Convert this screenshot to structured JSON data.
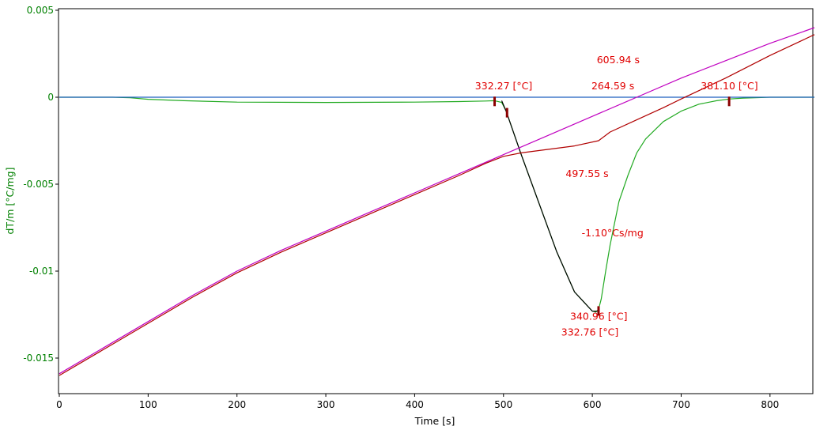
{
  "colors": {
    "axis_y": "#008000",
    "axis_x": "#000000",
    "annotation": "#e00000",
    "series_green": "#22aa22",
    "series_magenta": "#c000c0",
    "series_red": "#b00000",
    "series_blue": "#1f5fbf",
    "series_black": "#000000",
    "marker": "#8b0000"
  },
  "chart_data": {
    "type": "line",
    "xlabel": "Time [s]",
    "ylabel": "dT/m  [°C/mg]",
    "xlim": [
      0,
      850
    ],
    "ylim": [
      -0.017,
      0.005
    ],
    "xticks": [
      0,
      100,
      200,
      300,
      400,
      500,
      600,
      700,
      800
    ],
    "yticks": [
      0.005,
      0,
      -0.005,
      -0.01,
      -0.015
    ],
    "ytick_labels": [
      "0.005",
      "0",
      "-0.005",
      "-0.01",
      "-0.015"
    ],
    "xtick_labels": [
      "0",
      "100",
      "200",
      "300",
      "400",
      "500",
      "600",
      "700",
      "800"
    ],
    "series": [
      {
        "color": "#22aa22",
        "x": [
          0,
          60,
          80,
          100,
          140,
          200,
          300,
          400,
          450,
          480,
          490,
          498,
          503,
          520,
          540,
          560,
          580,
          600,
          604,
          607,
          610,
          615,
          620,
          630,
          640,
          650,
          660,
          680,
          700,
          720,
          740,
          755,
          770,
          800,
          850
        ],
        "y": [
          0,
          0,
          -3e-05,
          -0.00012,
          -0.0002,
          -0.00028,
          -0.0003,
          -0.00028,
          -0.00025,
          -0.00022,
          -0.0002,
          -0.0003,
          -0.0008,
          -0.0033,
          -0.0061,
          -0.0089,
          -0.0112,
          -0.0123,
          -0.01235,
          -0.0122,
          -0.0116,
          -0.01,
          -0.0085,
          -0.006,
          -0.0045,
          -0.0032,
          -0.0024,
          -0.0014,
          -0.0008,
          -0.0004,
          -0.0002,
          -0.0001,
          -5e-05,
          0,
          0
        ]
      },
      {
        "color": "#000000",
        "x": [
          498,
          503,
          520,
          540,
          560,
          580,
          600,
          607
        ],
        "y": [
          -0.0002,
          -0.0008,
          -0.0033,
          -0.0061,
          -0.0089,
          -0.0112,
          -0.0123,
          -0.0123
        ]
      },
      {
        "color": "#1f5fbf",
        "x": [
          0,
          850
        ],
        "y": [
          0,
          0
        ]
      },
      {
        "color": "#c000c0",
        "x": [
          0,
          50,
          100,
          150,
          200,
          250,
          300,
          350,
          400,
          450,
          500,
          550,
          600,
          650,
          700,
          750,
          800,
          850
        ],
        "y": [
          -0.0159,
          -0.0144,
          -0.0129,
          -0.0114,
          -0.01,
          -0.0088,
          -0.0077,
          -0.0066,
          -0.0055,
          -0.0044,
          -0.0033,
          -0.0022,
          -0.0011,
          0.0,
          0.0011,
          0.0021,
          0.0031,
          0.004
        ]
      },
      {
        "color": "#b00000",
        "x": [
          0,
          50,
          100,
          150,
          200,
          250,
          300,
          350,
          400,
          450,
          480,
          500,
          520,
          550,
          580,
          607,
          620,
          650,
          680,
          700,
          750,
          800,
          850
        ],
        "y": [
          -0.016,
          -0.0145,
          -0.013,
          -0.0115,
          -0.0101,
          -0.0089,
          -0.0078,
          -0.0067,
          -0.0056,
          -0.0045,
          -0.0038,
          -0.0034,
          -0.0032,
          -0.003,
          -0.0028,
          -0.0025,
          -0.002,
          -0.0013,
          -0.0006,
          -0.0001,
          0.0011,
          0.0024,
          0.0036
        ]
      }
    ],
    "markers": [
      {
        "x": 490,
        "y": -0.00015
      },
      {
        "x": 504,
        "y": -0.0008
      },
      {
        "x": 607,
        "y": -0.0122
      },
      {
        "x": 754,
        "y": -0.00015
      }
    ],
    "annotations": [
      {
        "text": "605.94 s",
        "x": 605,
        "y": 0.00195
      },
      {
        "text": "332.27 [°C]",
        "x": 468,
        "y": 0.00045
      },
      {
        "text": "264.59 s",
        "x": 599,
        "y": 0.00045
      },
      {
        "text": "381.10 [°C]",
        "x": 722,
        "y": 0.00045
      },
      {
        "text": "497.55 s",
        "x": 570,
        "y": -0.0046
      },
      {
        "text": "-1.10°Cs/mg",
        "x": 588,
        "y": -0.008
      },
      {
        "text": "340.96 [°C]",
        "x": 575,
        "y": -0.0128
      },
      {
        "text": "332.76 [°C]",
        "x": 565,
        "y": -0.0137
      }
    ]
  }
}
